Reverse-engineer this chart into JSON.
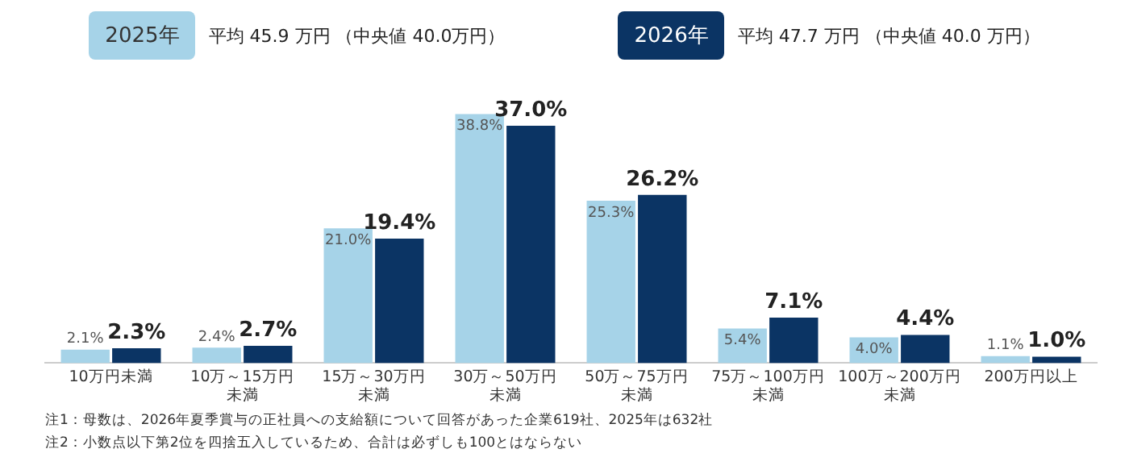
{
  "chart_data": {
    "type": "bar",
    "categories": [
      "10万円未満",
      "10万～15万円未満",
      "15万～30万円未満",
      "30万～50万円未満",
      "50万～75万円未満",
      "75万～100万円未満",
      "100万～200万円未満",
      "200万円以上"
    ],
    "series": [
      {
        "name": "2025年",
        "color": "#a6d3e8",
        "values": [
          2.1,
          2.4,
          21.0,
          38.8,
          25.3,
          5.4,
          4.0,
          1.1
        ],
        "value_labels": [
          "2.1%",
          "2.4%",
          "21.0%",
          "38.8%",
          "25.3%",
          "5.4%",
          "4.0%",
          "1.1%"
        ]
      },
      {
        "name": "2026年",
        "color": "#0b3464",
        "values": [
          2.3,
          2.7,
          19.4,
          37.0,
          26.2,
          7.1,
          4.4,
          1.0
        ],
        "value_labels": [
          "2.3%",
          "2.7%",
          "19.4%",
          "37.0%",
          "26.2%",
          "7.1%",
          "4.4%",
          "1.0%"
        ]
      }
    ],
    "legend": "top",
    "annotations": [
      "平均 45.9 万円 （中央値 40.0万円）",
      "平均 47.7 万円 （中央値 40.0 万円）",
      "注1：母数は、2026年夏季賞与の正社員への支給額について回答があった企業619社、2025年は632社",
      "注2：小数点以下第2位を四捨五入しているため、合計は必ずしも100とはならない"
    ]
  }
}
